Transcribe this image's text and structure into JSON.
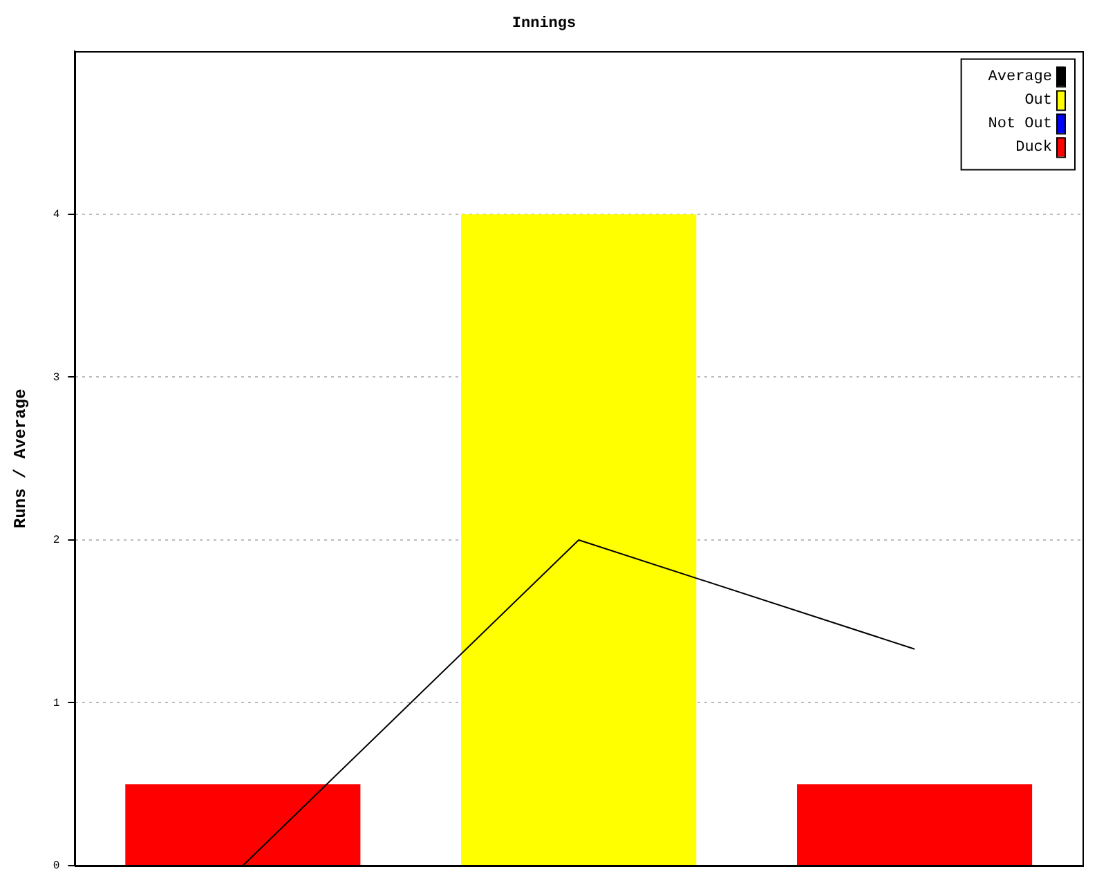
{
  "chart_data": {
    "type": "bar",
    "title": "Innings",
    "ylabel": "Runs / Average",
    "categories": [
      null,
      null,
      null
    ],
    "series": [
      {
        "name": "Average",
        "type": "line",
        "color": "#000000",
        "values": [
          0,
          2,
          1.33
        ]
      },
      {
        "name": "Out",
        "color": "#ffff00",
        "values": [
          null,
          4,
          null
        ]
      },
      {
        "name": "Not Out",
        "color": "#0000ff",
        "values": [
          null,
          null,
          null
        ]
      },
      {
        "name": "Duck",
        "color": "#ff0000",
        "values": [
          0.5,
          null,
          0.5
        ]
      }
    ],
    "stacked": true,
    "ylim": [
      0,
      5
    ],
    "yticks": [
      0,
      1,
      2,
      3,
      4
    ],
    "grid": "y",
    "legend": "top right",
    "marker": "none",
    "tick_labels": "y"
  }
}
